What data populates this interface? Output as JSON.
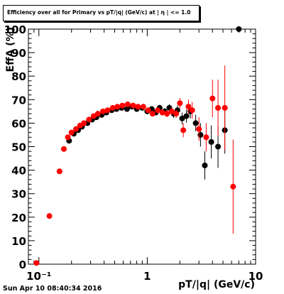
{
  "chart_data": {
    "type": "scatter",
    "title": "Efficiency over all for Primary vs pT/|q| (GeV/c) at | η | <= 1.0",
    "xlabel": "pT/|q| (GeV/c)",
    "ylabel": "EffA (%)",
    "xscale": "log",
    "xlim": [
      0.08,
      10
    ],
    "ylim": [
      0,
      100
    ],
    "xticks": [
      {
        "value": 0.1,
        "label": "10⁻¹"
      },
      {
        "value": 1,
        "label": "1"
      },
      {
        "value": 10,
        "label": "10"
      }
    ],
    "yticks": [
      0,
      10,
      20,
      30,
      40,
      50,
      60,
      70,
      80,
      90,
      100
    ],
    "grid": false,
    "series": [
      {
        "color": "#000000",
        "points": [
          {
            "x": 0.19,
            "y": 52.5,
            "err": 1.0
          },
          {
            "x": 0.21,
            "y": 55.5,
            "err": 0.8
          },
          {
            "x": 0.23,
            "y": 57.0,
            "err": 0.8
          },
          {
            "x": 0.25,
            "y": 58.5,
            "err": 0.7
          },
          {
            "x": 0.28,
            "y": 60.0,
            "err": 0.6
          },
          {
            "x": 0.31,
            "y": 61.5,
            "err": 0.6
          },
          {
            "x": 0.34,
            "y": 62.5,
            "err": 0.6
          },
          {
            "x": 0.38,
            "y": 63.5,
            "err": 0.6
          },
          {
            "x": 0.42,
            "y": 64.5,
            "err": 0.6
          },
          {
            "x": 0.47,
            "y": 65.5,
            "err": 0.6
          },
          {
            "x": 0.52,
            "y": 66.0,
            "err": 0.6
          },
          {
            "x": 0.58,
            "y": 66.5,
            "err": 0.7
          },
          {
            "x": 0.65,
            "y": 66.0,
            "err": 0.7
          },
          {
            "x": 0.72,
            "y": 67.0,
            "err": 0.8
          },
          {
            "x": 0.8,
            "y": 66.0,
            "err": 0.8
          },
          {
            "x": 0.9,
            "y": 66.5,
            "err": 0.9
          },
          {
            "x": 1.0,
            "y": 65.0,
            "err": 1.0
          },
          {
            "x": 1.1,
            "y": 66.0,
            "err": 1.1
          },
          {
            "x": 1.2,
            "y": 64.5,
            "err": 1.2
          },
          {
            "x": 1.3,
            "y": 66.5,
            "err": 1.3
          },
          {
            "x": 1.45,
            "y": 65.0,
            "err": 1.4
          },
          {
            "x": 1.6,
            "y": 66.5,
            "err": 1.6
          },
          {
            "x": 1.75,
            "y": 64.0,
            "err": 1.8
          },
          {
            "x": 1.9,
            "y": 65.5,
            "err": 2.0
          },
          {
            "x": 2.1,
            "y": 62.0,
            "err": 2.5
          },
          {
            "x": 2.3,
            "y": 63.0,
            "err": 2.8
          },
          {
            "x": 2.5,
            "y": 65.0,
            "err": 3.0
          },
          {
            "x": 2.8,
            "y": 60.0,
            "err": 3.5
          },
          {
            "x": 3.1,
            "y": 55.0,
            "err": 5.0
          },
          {
            "x": 3.4,
            "y": 42.0,
            "err": 6.0
          },
          {
            "x": 3.9,
            "y": 52.0,
            "err": 7.0
          },
          {
            "x": 4.5,
            "y": 50.0,
            "err": 9.0
          },
          {
            "x": 5.2,
            "y": 57.0,
            "err": 10.0
          },
          {
            "x": 7.0,
            "y": 100.0,
            "err": 0
          }
        ]
      },
      {
        "color": "#ff0000",
        "points": [
          {
            "x": 0.095,
            "y": 0.5,
            "err": 0.8
          },
          {
            "x": 0.125,
            "y": 20.5,
            "err": 1.0
          },
          {
            "x": 0.155,
            "y": 39.5,
            "err": 1.0
          },
          {
            "x": 0.17,
            "y": 49.0,
            "err": 1.0
          },
          {
            "x": 0.185,
            "y": 54.0,
            "err": 0.9
          },
          {
            "x": 0.2,
            "y": 56.0,
            "err": 0.8
          },
          {
            "x": 0.22,
            "y": 57.5,
            "err": 0.8
          },
          {
            "x": 0.24,
            "y": 59.0,
            "err": 0.7
          },
          {
            "x": 0.26,
            "y": 60.0,
            "err": 0.7
          },
          {
            "x": 0.29,
            "y": 61.5,
            "err": 0.6
          },
          {
            "x": 0.32,
            "y": 63.0,
            "err": 0.6
          },
          {
            "x": 0.35,
            "y": 64.0,
            "err": 0.6
          },
          {
            "x": 0.39,
            "y": 65.0,
            "err": 0.6
          },
          {
            "x": 0.43,
            "y": 65.5,
            "err": 0.6
          },
          {
            "x": 0.48,
            "y": 66.5,
            "err": 0.6
          },
          {
            "x": 0.53,
            "y": 67.0,
            "err": 0.6
          },
          {
            "x": 0.59,
            "y": 67.5,
            "err": 0.7
          },
          {
            "x": 0.66,
            "y": 68.0,
            "err": 0.7
          },
          {
            "x": 0.74,
            "y": 67.5,
            "err": 0.8
          },
          {
            "x": 0.82,
            "y": 67.0,
            "err": 0.8
          },
          {
            "x": 0.92,
            "y": 67.0,
            "err": 0.9
          },
          {
            "x": 1.02,
            "y": 65.5,
            "err": 1.0
          },
          {
            "x": 1.12,
            "y": 64.0,
            "err": 1.1
          },
          {
            "x": 1.25,
            "y": 65.5,
            "err": 1.2
          },
          {
            "x": 1.38,
            "y": 64.5,
            "err": 1.3
          },
          {
            "x": 1.52,
            "y": 64.0,
            "err": 1.5
          },
          {
            "x": 1.68,
            "y": 65.0,
            "err": 1.6
          },
          {
            "x": 1.85,
            "y": 64.0,
            "err": 1.8
          },
          {
            "x": 2.0,
            "y": 68.5,
            "err": 2.2
          },
          {
            "x": 2.15,
            "y": 57.0,
            "err": 3.0
          },
          {
            "x": 2.4,
            "y": 67.0,
            "err": 3.0
          },
          {
            "x": 2.6,
            "y": 65.5,
            "err": 3.5
          },
          {
            "x": 3.0,
            "y": 57.5,
            "err": 5.0
          },
          {
            "x": 3.5,
            "y": 54.0,
            "err": 6.0
          },
          {
            "x": 4.0,
            "y": 70.5,
            "err": 8.0
          },
          {
            "x": 4.5,
            "y": 66.5,
            "err": 12.0
          },
          {
            "x": 5.2,
            "y": 66.5,
            "err": 18.0
          },
          {
            "x": 6.2,
            "y": 33.0,
            "err": 20.0
          }
        ]
      }
    ]
  },
  "footer": {
    "datestamp": "Sun Apr 10 08:40:34 2016"
  }
}
